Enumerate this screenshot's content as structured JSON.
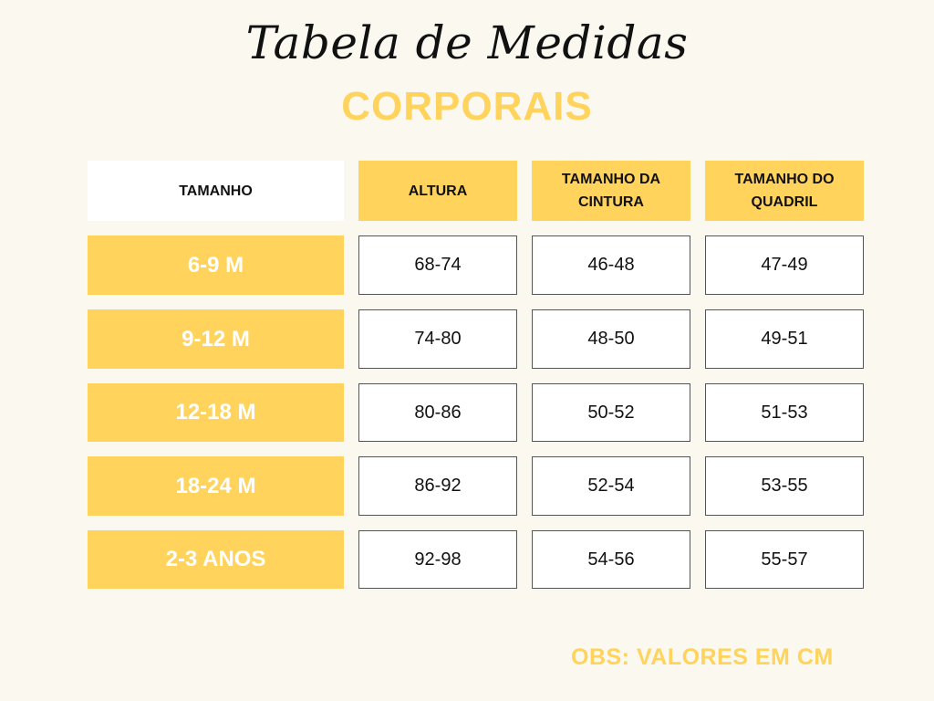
{
  "title": "Tabela de Medidas",
  "subtitle": "CORPORAIS",
  "table": {
    "headers": [
      "TAMANHO",
      "ALTURA",
      "TAMANHO DA\nCINTURA",
      "TAMANHO DO\nQUADRIL"
    ],
    "rows": [
      [
        "6-9 M",
        "68-74",
        "46-48",
        "47-49"
      ],
      [
        "9-12 M",
        "74-80",
        "48-50",
        "49-51"
      ],
      [
        "12-18 M",
        "80-86",
        "50-52",
        "51-53"
      ],
      [
        "18-24 M",
        "86-92",
        "52-54",
        "53-55"
      ],
      [
        "2-3 ANOS",
        "92-98",
        "54-56",
        "55-57"
      ]
    ]
  },
  "note": "OBS: VALORES EM CM",
  "colors": {
    "accent": "#ffd35c",
    "background": "#faf8ef"
  }
}
